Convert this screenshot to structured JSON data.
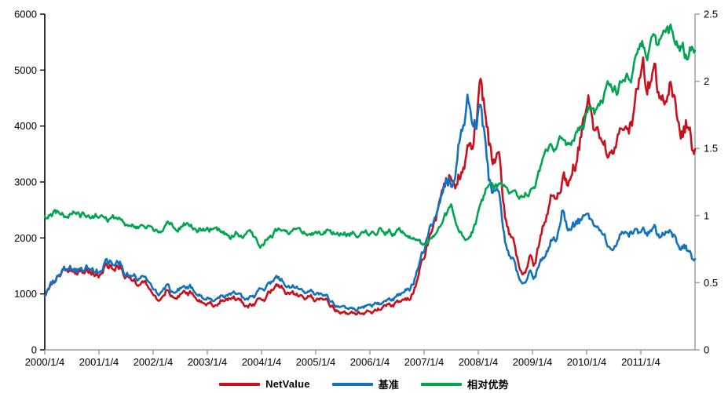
{
  "chart_data": {
    "type": "line",
    "grid": false,
    "background": "#ffffff",
    "axis_colors": {
      "left_spine": "#000000",
      "bottom_spine": "#9b9b9b",
      "right_spine": "#9b9b9b",
      "tick_label": "#000000"
    },
    "x_axis": {
      "tick_labels": [
        "2000/1/4",
        "2001/1/4",
        "2002/1/4",
        "2003/1/4",
        "2004/1/4",
        "2005/1/4",
        "2006/1/4",
        "2007/1/4",
        "2008/1/4",
        "2009/1/4",
        "2010/1/4",
        "2011/1/4"
      ],
      "range_years": [
        2000,
        2012
      ]
    },
    "y_axis_left": {
      "tick_labels": [
        "0",
        "1000",
        "2000",
        "3000",
        "4000",
        "5000",
        "6000"
      ],
      "range": [
        0,
        6000
      ]
    },
    "y_axis_right": {
      "tick_labels": [
        "0",
        "0.5",
        "1",
        "1.5",
        "2",
        "2.5"
      ],
      "range": [
        0,
        2.5
      ]
    },
    "legend": {
      "position": "bottom-center"
    },
    "series": [
      {
        "name": "NetValue",
        "color": "#c9101c",
        "axis": "left",
        "points": [
          [
            2000.0,
            1000
          ],
          [
            2000.1,
            1130
          ],
          [
            2000.2,
            1250
          ],
          [
            2000.35,
            1380
          ],
          [
            2000.5,
            1420
          ],
          [
            2000.6,
            1380
          ],
          [
            2000.75,
            1440
          ],
          [
            2000.9,
            1420
          ],
          [
            2001.0,
            1430
          ],
          [
            2001.2,
            1460
          ],
          [
            2001.4,
            1480
          ],
          [
            2001.55,
            1280
          ],
          [
            2001.7,
            1180
          ],
          [
            2001.85,
            1150
          ],
          [
            2002.0,
            1000
          ],
          [
            2002.1,
            840
          ],
          [
            2002.25,
            1120
          ],
          [
            2002.4,
            890
          ],
          [
            2002.55,
            1080
          ],
          [
            2002.7,
            1000
          ],
          [
            2002.85,
            880
          ],
          [
            2003.1,
            800
          ],
          [
            2003.25,
            930
          ],
          [
            2003.45,
            950
          ],
          [
            2003.6,
            900
          ],
          [
            2003.75,
            770
          ],
          [
            2003.9,
            850
          ],
          [
            2004.0,
            900
          ],
          [
            2004.1,
            950
          ],
          [
            2004.25,
            1110
          ],
          [
            2004.4,
            1150
          ],
          [
            2004.55,
            1000
          ],
          [
            2004.7,
            950
          ],
          [
            2004.85,
            990
          ],
          [
            2005.0,
            870
          ],
          [
            2005.2,
            830
          ],
          [
            2005.4,
            700
          ],
          [
            2005.6,
            650
          ],
          [
            2005.75,
            635
          ],
          [
            2005.9,
            680
          ],
          [
            2006.0,
            700
          ],
          [
            2006.15,
            750
          ],
          [
            2006.3,
            780
          ],
          [
            2006.45,
            820
          ],
          [
            2006.6,
            850
          ],
          [
            2006.75,
            950
          ],
          [
            2006.9,
            1300
          ],
          [
            2007.0,
            1700
          ],
          [
            2007.1,
            2000
          ],
          [
            2007.25,
            2500
          ],
          [
            2007.4,
            3100
          ],
          [
            2007.5,
            3250
          ],
          [
            2007.6,
            3000
          ],
          [
            2007.7,
            3200
          ],
          [
            2007.8,
            3550
          ],
          [
            2007.88,
            3300
          ],
          [
            2007.95,
            3800
          ],
          [
            2008.05,
            4550
          ],
          [
            2008.12,
            4200
          ],
          [
            2008.2,
            3600
          ],
          [
            2008.3,
            3300
          ],
          [
            2008.37,
            3420
          ],
          [
            2008.5,
            2400
          ],
          [
            2008.62,
            1950
          ],
          [
            2008.75,
            1500
          ],
          [
            2008.85,
            1350
          ],
          [
            2008.95,
            1600
          ],
          [
            2009.05,
            1480
          ],
          [
            2009.15,
            2000
          ],
          [
            2009.3,
            2700
          ],
          [
            2009.45,
            3000
          ],
          [
            2009.55,
            3100
          ],
          [
            2009.65,
            2900
          ],
          [
            2009.8,
            3400
          ],
          [
            2009.95,
            4000
          ],
          [
            2010.05,
            4200
          ],
          [
            2010.15,
            3800
          ],
          [
            2010.3,
            3600
          ],
          [
            2010.45,
            3300
          ],
          [
            2010.55,
            3600
          ],
          [
            2010.65,
            3700
          ],
          [
            2010.8,
            4100
          ],
          [
            2010.9,
            4300
          ],
          [
            2011.0,
            4600
          ],
          [
            2011.1,
            4750
          ],
          [
            2011.2,
            4850
          ],
          [
            2011.35,
            4500
          ],
          [
            2011.45,
            4300
          ],
          [
            2011.55,
            4600
          ],
          [
            2011.65,
            4200
          ],
          [
            2011.75,
            3900
          ],
          [
            2011.85,
            4100
          ],
          [
            2011.92,
            3700
          ],
          [
            2011.98,
            3400
          ]
        ]
      },
      {
        "name": "基准",
        "color": "#1272bd",
        "axis": "left",
        "points": [
          [
            2000.0,
            1020
          ],
          [
            2000.1,
            1150
          ],
          [
            2000.2,
            1270
          ],
          [
            2000.35,
            1400
          ],
          [
            2000.5,
            1440
          ],
          [
            2000.6,
            1410
          ],
          [
            2000.75,
            1470
          ],
          [
            2000.9,
            1460
          ],
          [
            2001.0,
            1470
          ],
          [
            2001.2,
            1520
          ],
          [
            2001.4,
            1555
          ],
          [
            2001.55,
            1350
          ],
          [
            2001.7,
            1260
          ],
          [
            2001.85,
            1230
          ],
          [
            2002.0,
            1080
          ],
          [
            2002.1,
            930
          ],
          [
            2002.25,
            1210
          ],
          [
            2002.4,
            970
          ],
          [
            2002.55,
            1160
          ],
          [
            2002.7,
            1080
          ],
          [
            2002.85,
            970
          ],
          [
            2003.1,
            880
          ],
          [
            2003.25,
            1020
          ],
          [
            2003.45,
            1040
          ],
          [
            2003.6,
            1000
          ],
          [
            2003.75,
            900
          ],
          [
            2003.9,
            1000
          ],
          [
            2004.0,
            1120
          ],
          [
            2004.1,
            1150
          ],
          [
            2004.25,
            1250
          ],
          [
            2004.4,
            1290
          ],
          [
            2004.55,
            1120
          ],
          [
            2004.7,
            1060
          ],
          [
            2004.85,
            1100
          ],
          [
            2005.0,
            980
          ],
          [
            2005.2,
            930
          ],
          [
            2005.4,
            800
          ],
          [
            2005.6,
            760
          ],
          [
            2005.75,
            730
          ],
          [
            2005.9,
            790
          ],
          [
            2006.0,
            810
          ],
          [
            2006.15,
            860
          ],
          [
            2006.3,
            880
          ],
          [
            2006.45,
            930
          ],
          [
            2006.6,
            980
          ],
          [
            2006.75,
            1120
          ],
          [
            2006.9,
            1450
          ],
          [
            2007.0,
            1850
          ],
          [
            2007.1,
            2100
          ],
          [
            2007.25,
            2500
          ],
          [
            2007.4,
            3000
          ],
          [
            2007.5,
            3100
          ],
          [
            2007.6,
            3300
          ],
          [
            2007.7,
            3900
          ],
          [
            2007.8,
            4330
          ],
          [
            2007.88,
            3900
          ],
          [
            2007.95,
            3800
          ],
          [
            2008.05,
            4100
          ],
          [
            2008.12,
            3700
          ],
          [
            2008.2,
            2950
          ],
          [
            2008.3,
            2750
          ],
          [
            2008.37,
            2820
          ],
          [
            2008.5,
            1900
          ],
          [
            2008.62,
            1600
          ],
          [
            2008.75,
            1280
          ],
          [
            2008.85,
            1180
          ],
          [
            2008.95,
            1350
          ],
          [
            2009.05,
            1260
          ],
          [
            2009.15,
            1550
          ],
          [
            2009.3,
            1880
          ],
          [
            2009.45,
            2150
          ],
          [
            2009.55,
            2480
          ],
          [
            2009.65,
            2120
          ],
          [
            2009.8,
            2350
          ],
          [
            2009.95,
            2320
          ],
          [
            2010.05,
            2220
          ],
          [
            2010.15,
            2100
          ],
          [
            2010.3,
            1980
          ],
          [
            2010.45,
            1680
          ],
          [
            2010.55,
            1820
          ],
          [
            2010.65,
            1980
          ],
          [
            2010.8,
            2150
          ],
          [
            2010.9,
            2050
          ],
          [
            2011.0,
            2010
          ],
          [
            2011.1,
            2120
          ],
          [
            2011.2,
            2080
          ],
          [
            2011.35,
            1980
          ],
          [
            2011.45,
            2060
          ],
          [
            2011.55,
            2110
          ],
          [
            2011.65,
            1960
          ],
          [
            2011.75,
            1850
          ],
          [
            2011.85,
            1820
          ],
          [
            2011.92,
            1680
          ],
          [
            2011.98,
            1530
          ]
        ]
      },
      {
        "name": "相对优势",
        "color": "#00a64f",
        "axis": "right",
        "points": [
          [
            2000.0,
            0.98
          ],
          [
            2000.15,
            1.005
          ],
          [
            2000.3,
            1.02
          ],
          [
            2000.5,
            1.01
          ],
          [
            2000.7,
            1.0
          ],
          [
            2000.9,
            1.01
          ],
          [
            2001.1,
            0.99
          ],
          [
            2001.3,
            0.97
          ],
          [
            2001.5,
            0.94
          ],
          [
            2001.7,
            0.92
          ],
          [
            2001.9,
            0.91
          ],
          [
            2002.1,
            0.89
          ],
          [
            2002.25,
            0.93
          ],
          [
            2002.4,
            0.905
          ],
          [
            2002.6,
            0.93
          ],
          [
            2002.8,
            0.91
          ],
          [
            2003.0,
            0.9
          ],
          [
            2003.15,
            0.91
          ],
          [
            2003.3,
            0.87
          ],
          [
            2003.43,
            0.84
          ],
          [
            2003.55,
            0.885
          ],
          [
            2003.7,
            0.85
          ],
          [
            2003.8,
            0.87
          ],
          [
            2003.9,
            0.83
          ],
          [
            2003.97,
            0.79
          ],
          [
            2004.1,
            0.845
          ],
          [
            2004.25,
            0.88
          ],
          [
            2004.4,
            0.89
          ],
          [
            2004.6,
            0.88
          ],
          [
            2004.8,
            0.9
          ],
          [
            2005.0,
            0.89
          ],
          [
            2005.2,
            0.88
          ],
          [
            2005.4,
            0.87
          ],
          [
            2005.6,
            0.86
          ],
          [
            2005.8,
            0.875
          ],
          [
            2006.0,
            0.87
          ],
          [
            2006.2,
            0.89
          ],
          [
            2006.4,
            0.88
          ],
          [
            2006.6,
            0.87
          ],
          [
            2006.75,
            0.84
          ],
          [
            2006.9,
            0.79
          ],
          [
            2007.0,
            0.77
          ],
          [
            2007.1,
            0.82
          ],
          [
            2007.2,
            0.88
          ],
          [
            2007.35,
            0.97
          ],
          [
            2007.5,
            1.04
          ],
          [
            2007.6,
            0.96
          ],
          [
            2007.7,
            0.89
          ],
          [
            2007.8,
            0.83
          ],
          [
            2007.9,
            0.89
          ],
          [
            2008.0,
            1.0
          ],
          [
            2008.1,
            1.13
          ],
          [
            2008.2,
            1.24
          ],
          [
            2008.3,
            1.2
          ],
          [
            2008.42,
            1.26
          ],
          [
            2008.55,
            1.21
          ],
          [
            2008.7,
            1.16
          ],
          [
            2008.85,
            1.15
          ],
          [
            2009.0,
            1.21
          ],
          [
            2009.1,
            1.3
          ],
          [
            2009.25,
            1.42
          ],
          [
            2009.4,
            1.5
          ],
          [
            2009.55,
            1.57
          ],
          [
            2009.65,
            1.52
          ],
          [
            2009.8,
            1.6
          ],
          [
            2009.95,
            1.7
          ],
          [
            2010.05,
            1.78
          ],
          [
            2010.15,
            1.74
          ],
          [
            2010.3,
            1.86
          ],
          [
            2010.45,
            1.98
          ],
          [
            2010.55,
            1.94
          ],
          [
            2010.7,
            2.03
          ],
          [
            2010.85,
            2.12
          ],
          [
            2011.0,
            2.28
          ],
          [
            2011.1,
            2.22
          ],
          [
            2011.2,
            2.3
          ],
          [
            2011.3,
            2.19
          ],
          [
            2011.45,
            2.26
          ],
          [
            2011.55,
            2.3
          ],
          [
            2011.65,
            2.22
          ],
          [
            2011.75,
            2.27
          ],
          [
            2011.85,
            2.2
          ],
          [
            2011.93,
            2.28
          ],
          [
            2011.98,
            2.24
          ]
        ]
      }
    ]
  }
}
